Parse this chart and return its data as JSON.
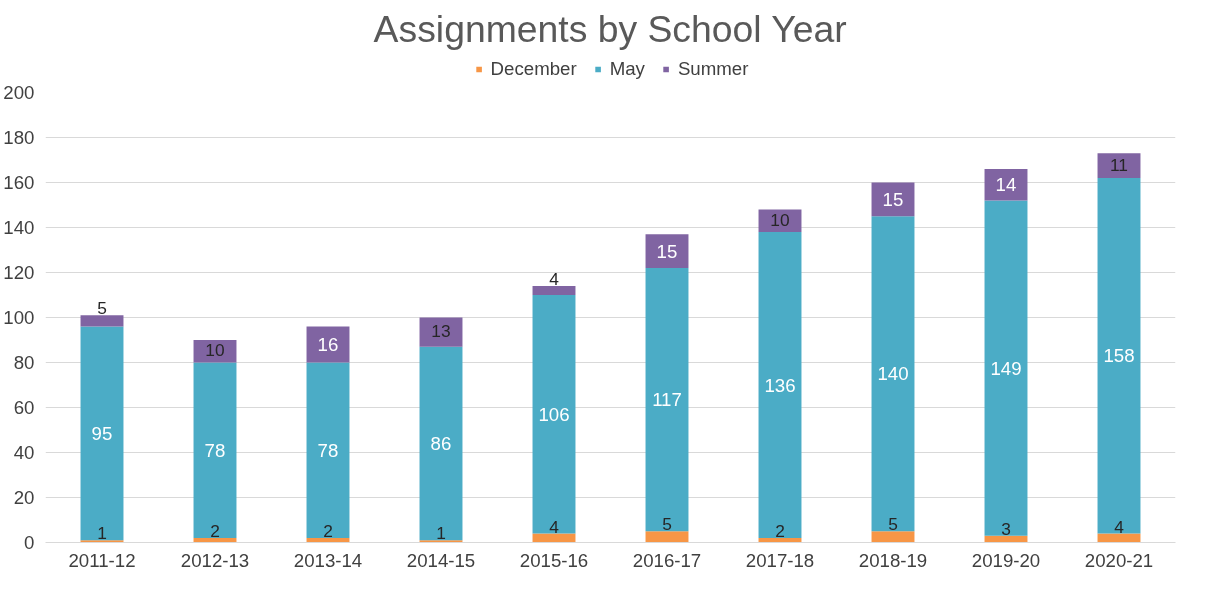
{
  "chart_data": {
    "type": "bar",
    "title": "Assignments by School Year",
    "stacked": true,
    "categories": [
      "2011-12",
      "2012-13",
      "2013-14",
      "2014-15",
      "2015-16",
      "2016-17",
      "2017-18",
      "2018-19",
      "2019-20",
      "2020-21"
    ],
    "series": [
      {
        "name": "December",
        "color": "#f79646",
        "values": [
          1,
          2,
          2,
          1,
          4,
          5,
          2,
          5,
          3,
          4
        ]
      },
      {
        "name": "May",
        "color": "#4bacc6",
        "values": [
          95,
          78,
          78,
          86,
          106,
          117,
          136,
          140,
          149,
          158
        ]
      },
      {
        "name": "Summer",
        "color": "#8064a2",
        "values": [
          5,
          10,
          16,
          13,
          4,
          15,
          10,
          15,
          14,
          11
        ]
      }
    ],
    "ylim": [
      0,
      200
    ],
    "yticks": [
      0,
      20,
      40,
      60,
      80,
      100,
      120,
      140,
      160,
      180,
      200
    ],
    "grid": "y",
    "legend": "top",
    "data_labels": true
  }
}
